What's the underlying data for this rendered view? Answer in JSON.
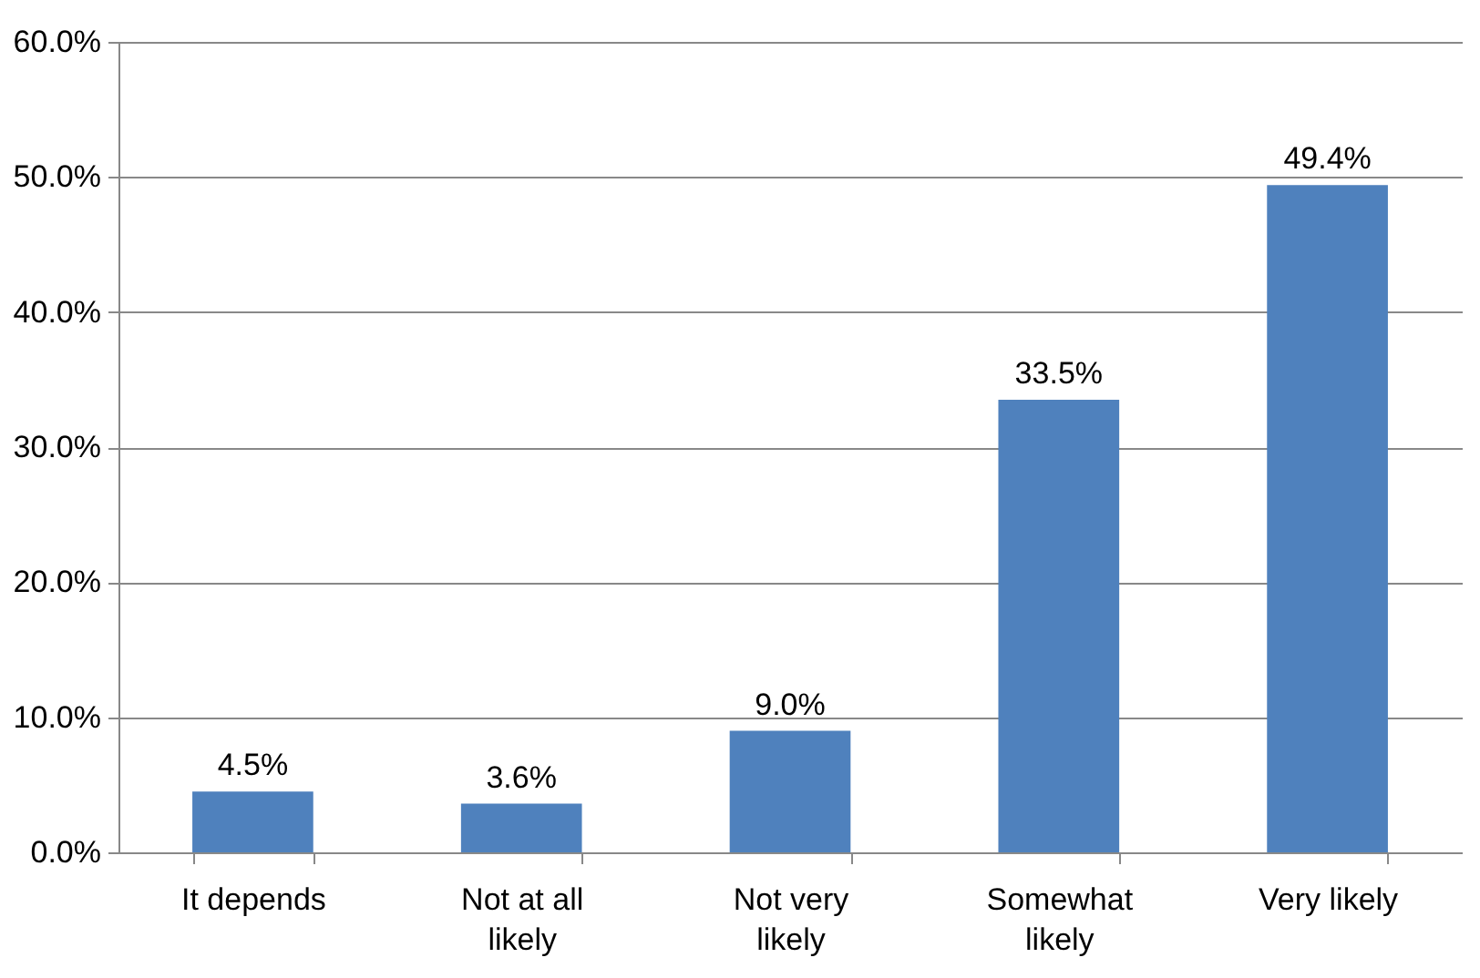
{
  "chart_data": {
    "type": "bar",
    "categories": [
      "It depends",
      "Not at all likely",
      "Not very likely",
      "Somewhat likely",
      "Very likely"
    ],
    "values": [
      4.5,
      3.6,
      9.0,
      33.5,
      49.4
    ],
    "value_labels": [
      "4.5%",
      "3.6%",
      "9.0%",
      "33.5%",
      "49.4%"
    ],
    "color": "#4f81bd",
    "ylim": [
      0,
      60
    ],
    "yticks": [
      {
        "value": 0,
        "label": "0.0%"
      },
      {
        "value": 10,
        "label": "10.0%"
      },
      {
        "value": 20,
        "label": "20.0%"
      },
      {
        "value": 30,
        "label": "30.0%"
      },
      {
        "value": 40,
        "label": "40.0%"
      },
      {
        "value": 50,
        "label": "50.0%"
      },
      {
        "value": 60,
        "label": "60.0%"
      }
    ],
    "grid": "y"
  }
}
